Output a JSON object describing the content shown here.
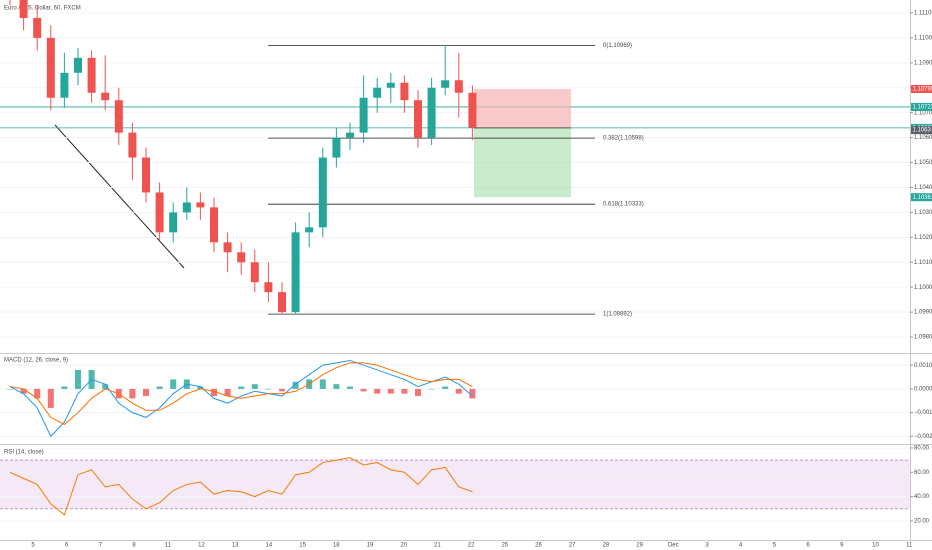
{
  "chart_data": [
    {
      "type": "candlestick",
      "title": "Euro / U.S. Dollar, 60, FXCM",
      "open": [
        1.1128,
        1.1118,
        1.1108,
        1.11,
        1.1076,
        1.1086,
        1.1092,
        1.1078,
        1.1075,
        1.1062,
        1.1052,
        1.1038,
        1.1022,
        1.103,
        1.1034,
        1.1032,
        1.1018,
        1.1014,
        1.101,
        1.1002,
        1.0998,
        1.099,
        1.1022,
        1.1024,
        1.1052,
        1.106,
        1.1062,
        1.1076,
        1.108,
        1.1082,
        1.1075,
        1.106,
        1.108,
        1.1083,
        1.1078
      ],
      "high": [
        1.1133,
        1.1123,
        1.1113,
        1.1105,
        1.1094,
        1.1096,
        1.1095,
        1.1093,
        1.108,
        1.1066,
        1.1056,
        1.1042,
        1.1034,
        1.104,
        1.1038,
        1.1036,
        1.1022,
        1.1018,
        1.1015,
        1.101,
        1.1002,
        1.1026,
        1.103,
        1.1056,
        1.1064,
        1.1066,
        1.1085,
        1.1084,
        1.1086,
        1.1085,
        1.1079,
        1.1084,
        1.1097,
        1.1094,
        1.1081
      ],
      "low": [
        1.1113,
        1.1103,
        1.1095,
        1.1071,
        1.1072,
        1.1081,
        1.1074,
        1.1071,
        1.1057,
        1.1043,
        1.1034,
        1.1019,
        1.1018,
        1.1027,
        1.1027,
        1.1014,
        1.1006,
        1.1005,
        1.0998,
        1.0994,
        1.0989,
        1.0989,
        1.1016,
        1.102,
        1.1048,
        1.1055,
        1.1058,
        1.107,
        1.1074,
        1.107,
        1.1056,
        1.1057,
        1.1077,
        1.1068,
        1.1059
      ],
      "close": [
        1.1118,
        1.1108,
        1.11,
        1.1076,
        1.1086,
        1.1092,
        1.1078,
        1.1075,
        1.1062,
        1.1052,
        1.1038,
        1.1022,
        1.103,
        1.1034,
        1.1032,
        1.1018,
        1.1014,
        1.101,
        1.1002,
        1.0998,
        1.099,
        1.1022,
        1.1024,
        1.1052,
        1.106,
        1.1062,
        1.1076,
        1.108,
        1.1082,
        1.1075,
        1.106,
        1.108,
        1.1083,
        1.1078,
        1.1064
      ],
      "up_color": "#26a69a",
      "down_color": "#ef5350",
      "ylim": [
        1.0974,
        1.11152
      ],
      "yticks": [
        {
          "value": 1.111,
          "label": "1.11100"
        },
        {
          "value": 1.11,
          "label": "1.11000"
        },
        {
          "value": 1.109,
          "label": "1.10900"
        },
        {
          "value": 1.108,
          "label": "1.10800"
        },
        {
          "value": 1.107,
          "label": "1.10700"
        },
        {
          "value": 1.106,
          "label": "1.10600"
        },
        {
          "value": 1.105,
          "label": "1.10500"
        },
        {
          "value": 1.104,
          "label": "1.10400"
        },
        {
          "value": 1.103,
          "label": "1.10300"
        },
        {
          "value": 1.102,
          "label": "1.10200"
        },
        {
          "value": 1.101,
          "label": "1.10100"
        },
        {
          "value": 1.1,
          "label": "1.10000"
        },
        {
          "value": 1.099,
          "label": "1.09900"
        },
        {
          "value": 1.098,
          "label": "1.09800"
        }
      ],
      "fib_levels": [
        {
          "label": "0(1.10969)",
          "value": 1.10969
        },
        {
          "label": "0.382(1.10598)",
          "value": 1.10598
        },
        {
          "label": "0.618(1.10333)",
          "value": 1.10333
        },
        {
          "label": "1(1.09892)",
          "value": 1.09892
        }
      ],
      "position": {
        "entry": 1.10639,
        "stop": 1.10795,
        "target": 1.10361
      },
      "price_tags": [
        {
          "value": 1.10795,
          "color": "#ef5350"
        },
        {
          "value": 1.10723,
          "color": "#26a69a"
        },
        {
          "value": 1.10639,
          "color": "#26a69a"
        },
        {
          "value": 1.1063,
          "color": "#5d606b"
        },
        {
          "value": 1.10361,
          "color": "#26a69a"
        }
      ],
      "horizontal_lines": [
        1.10723,
        1.10639
      ]
    },
    {
      "type": "macd",
      "title": "MACD (12, 26, close, 9)",
      "series": [
        {
          "name": "MACD",
          "color": "#2196f3",
          "values": [
            0.0001,
            -0.0002,
            -0.0008,
            -0.002,
            -0.0014,
            -0.0002,
            0.0004,
            0.0002,
            -0.0006,
            -0.001,
            -0.0012,
            -0.0008,
            -0.0002,
            0.0002,
            0.0001,
            -0.0004,
            -0.0006,
            -0.0003,
            -0.0001,
            -0.0002,
            -0.0003,
            0.0002,
            0.0006,
            0.001,
            0.0011,
            0.0012,
            0.001,
            0.0008,
            0.0006,
            0.0004,
            0.0001,
            0.0003,
            0.0005,
            0.0002,
            -0.0003
          ]
        },
        {
          "name": "Signal",
          "color": "#ff6d00",
          "values": [
            0.0001,
            0,
            -0.0004,
            -0.0012,
            -0.0015,
            -0.001,
            -0.0004,
            0,
            -0.0002,
            -0.0006,
            -0.0009,
            -0.0009,
            -0.0006,
            -0.0002,
            0,
            -0.0001,
            -0.0003,
            -0.0004,
            -0.0003,
            -0.0002,
            -0.0002,
            -0.0001,
            0.0002,
            0.0006,
            0.0009,
            0.0011,
            0.0011,
            0.001,
            0.0008,
            0.0006,
            0.0004,
            0.0003,
            0.0004,
            0.0004,
            0.0001
          ]
        }
      ],
      "histogram": [
        0,
        -0.0002,
        -0.0004,
        -0.0008,
        0.0001,
        0.0008,
        0.0008,
        0.0002,
        -0.0004,
        -0.0004,
        -0.0003,
        0.0001,
        0.0004,
        0.0004,
        0.0001,
        -0.0003,
        -0.0003,
        0.0001,
        0.0002,
        0,
        -0.0001,
        0.0003,
        0.0004,
        0.0004,
        0.0002,
        0.0001,
        -0.0001,
        -0.0002,
        -0.0002,
        -0.0002,
        -0.0003,
        0,
        0.0001,
        -0.0002,
        -0.0004
      ],
      "histogram_colors": [
        "#26a69a",
        "#ef5350"
      ],
      "ylim": [
        -0.00228,
        0.00143
      ],
      "yticks": [
        {
          "value": 0.001,
          "label": "0.00100"
        },
        {
          "value": 0,
          "label": "0.00000"
        },
        {
          "value": -0.001,
          "label": "−0.00100"
        },
        {
          "value": -0.002,
          "label": "−0.00200"
        }
      ]
    },
    {
      "type": "rsi",
      "title": "RSI (14, close)",
      "series": [
        {
          "name": "RSI",
          "color": "#f57c00",
          "values": [
            60,
            55,
            50,
            34,
            25,
            58,
            62,
            48,
            50,
            38,
            30,
            35,
            45,
            50,
            52,
            42,
            45,
            44,
            40,
            45,
            42,
            58,
            60,
            68,
            70,
            72,
            66,
            68,
            62,
            60,
            50,
            62,
            64,
            48,
            44
          ]
        }
      ],
      "band": [
        30,
        70
      ],
      "band_color": "#9c27b0",
      "ylim": [
        6.8,
        81.6
      ],
      "yticks": [
        {
          "value": 80,
          "label": "80.00"
        },
        {
          "value": 60,
          "label": "60.00"
        },
        {
          "value": 40,
          "label": "40.00"
        },
        {
          "value": 20,
          "label": "20.00"
        }
      ],
      "date_labels": [
        "5",
        "6",
        "7",
        "8",
        "11",
        "12",
        "13",
        "14",
        "15",
        "18",
        "19",
        "20",
        "21",
        "22",
        "25",
        "26",
        "27",
        "28",
        "29",
        "Dec",
        "3",
        "4",
        "5",
        "6",
        "9",
        "10",
        "11"
      ]
    }
  ]
}
